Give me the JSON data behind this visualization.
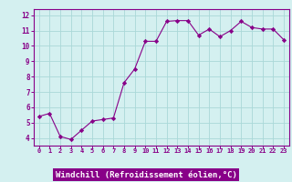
{
  "x": [
    0,
    1,
    2,
    3,
    4,
    5,
    6,
    7,
    8,
    9,
    10,
    11,
    12,
    13,
    14,
    15,
    16,
    17,
    18,
    19,
    20,
    21,
    22,
    23
  ],
  "y": [
    5.4,
    5.6,
    4.1,
    3.9,
    4.5,
    5.1,
    5.2,
    5.3,
    7.6,
    8.5,
    10.3,
    10.3,
    11.6,
    11.65,
    11.65,
    10.7,
    11.1,
    10.6,
    11.0,
    11.6,
    11.2,
    11.1,
    11.1,
    10.4
  ],
  "line_color": "#880088",
  "marker": "D",
  "marker_size": 2.2,
  "bg_color": "#d4f0f0",
  "grid_color": "#aad8d8",
  "xlabel": "Windchill (Refroidissement éolien,°C)",
  "xlabel_bg": "#880088",
  "xlabel_fg": "#ffffff",
  "ylabel_ticks": [
    4,
    5,
    6,
    7,
    8,
    9,
    10,
    11,
    12
  ],
  "xlim": [
    -0.5,
    23.5
  ],
  "ylim": [
    3.5,
    12.4
  ],
  "axis_color": "#880088",
  "tick_color": "#880088",
  "spine_color": "#880088"
}
